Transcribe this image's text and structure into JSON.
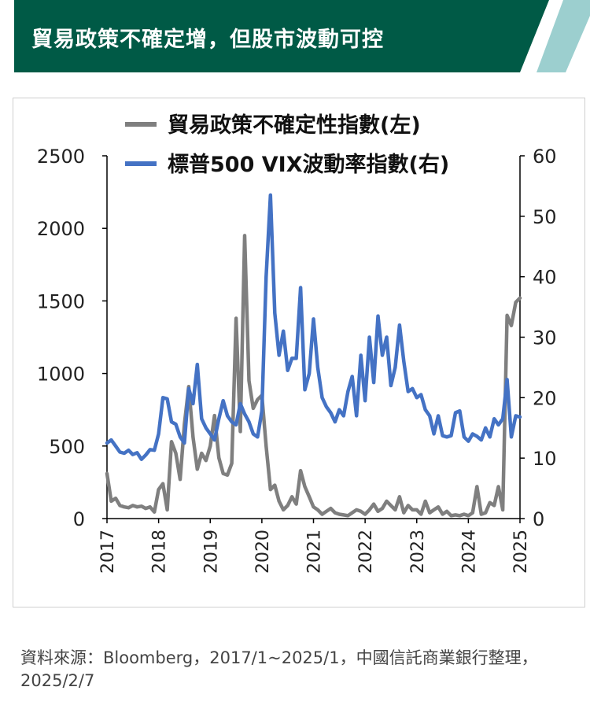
{
  "header": {
    "title": "貿易政策不確定增，但股市波動可控",
    "bg_color": "#005a46",
    "accent_color": "#9ccfcf"
  },
  "chart_data": {
    "type": "line",
    "title": "",
    "x_axis": {
      "label": "",
      "range": [
        2017,
        2025
      ],
      "ticks": [
        "2017",
        "2018",
        "2019",
        "2020",
        "2021",
        "2022",
        "2023",
        "2024",
        "2025"
      ]
    },
    "y_axis_left": {
      "label": "",
      "range": [
        0,
        2500
      ],
      "ticks": [
        "0",
        "500",
        "1000",
        "1500",
        "2000",
        "2500"
      ]
    },
    "y_axis_right": {
      "label": "",
      "range": [
        0,
        60
      ],
      "ticks": [
        "0",
        "10",
        "20",
        "30",
        "40",
        "50",
        "60"
      ]
    },
    "grid": false,
    "legend_position": "top-center",
    "series": [
      {
        "name": "貿易政策不確定性指數(左)",
        "axis": "left",
        "color": "#7f7f7f",
        "x": [
          2017.0,
          2017.083,
          2017.167,
          2017.25,
          2017.333,
          2017.417,
          2017.5,
          2017.583,
          2017.667,
          2017.75,
          2017.833,
          2017.917,
          2018.0,
          2018.083,
          2018.167,
          2018.25,
          2018.333,
          2018.417,
          2018.5,
          2018.583,
          2018.667,
          2018.75,
          2018.833,
          2018.917,
          2019.0,
          2019.083,
          2019.167,
          2019.25,
          2019.333,
          2019.417,
          2019.5,
          2019.583,
          2019.667,
          2019.75,
          2019.833,
          2019.917,
          2020.0,
          2020.083,
          2020.167,
          2020.25,
          2020.333,
          2020.417,
          2020.5,
          2020.583,
          2020.667,
          2020.75,
          2020.833,
          2020.917,
          2021.0,
          2021.083,
          2021.167,
          2021.25,
          2021.333,
          2021.417,
          2021.5,
          2021.583,
          2021.667,
          2021.75,
          2021.833,
          2021.917,
          2022.0,
          2022.083,
          2022.167,
          2022.25,
          2022.333,
          2022.417,
          2022.5,
          2022.583,
          2022.667,
          2022.75,
          2022.833,
          2022.917,
          2023.0,
          2023.083,
          2023.167,
          2023.25,
          2023.333,
          2023.417,
          2023.5,
          2023.583,
          2023.667,
          2023.75,
          2023.833,
          2023.917,
          2024.0,
          2024.083,
          2024.167,
          2024.25,
          2024.333,
          2024.417,
          2024.5,
          2024.583,
          2024.667,
          2024.75,
          2024.833,
          2024.917,
          2025.0
        ],
        "y": [
          310,
          120,
          140,
          90,
          80,
          75,
          90,
          80,
          85,
          70,
          80,
          45,
          200,
          240,
          60,
          530,
          450,
          270,
          650,
          910,
          560,
          340,
          450,
          400,
          500,
          710,
          420,
          310,
          300,
          380,
          1380,
          600,
          1950,
          950,
          760,
          820,
          850,
          500,
          200,
          230,
          120,
          60,
          90,
          150,
          100,
          330,
          220,
          150,
          80,
          60,
          30,
          50,
          70,
          40,
          30,
          25,
          20,
          40,
          60,
          50,
          30,
          60,
          100,
          50,
          70,
          120,
          90,
          60,
          150,
          40,
          90,
          60,
          60,
          30,
          120,
          40,
          60,
          80,
          30,
          50,
          20,
          25,
          20,
          30,
          20,
          40,
          220,
          30,
          40,
          110,
          90,
          220,
          60,
          1400,
          1330,
          1490,
          1520
        ]
      },
      {
        "name": "標普500 VIX波動率指數(右)",
        "axis": "right",
        "color": "#4472c4",
        "x": [
          2017.0,
          2017.083,
          2017.167,
          2017.25,
          2017.333,
          2017.417,
          2017.5,
          2017.583,
          2017.667,
          2017.75,
          2017.833,
          2017.917,
          2018.0,
          2018.083,
          2018.167,
          2018.25,
          2018.333,
          2018.417,
          2018.5,
          2018.583,
          2018.667,
          2018.75,
          2018.833,
          2018.917,
          2019.0,
          2019.083,
          2019.167,
          2019.25,
          2019.333,
          2019.417,
          2019.5,
          2019.583,
          2019.667,
          2019.75,
          2019.833,
          2019.917,
          2020.0,
          2020.083,
          2020.167,
          2020.25,
          2020.333,
          2020.417,
          2020.5,
          2020.583,
          2020.667,
          2020.75,
          2020.833,
          2020.917,
          2021.0,
          2021.083,
          2021.167,
          2021.25,
          2021.333,
          2021.417,
          2021.5,
          2021.583,
          2021.667,
          2021.75,
          2021.833,
          2021.917,
          2022.0,
          2022.083,
          2022.167,
          2022.25,
          2022.333,
          2022.417,
          2022.5,
          2022.583,
          2022.667,
          2022.75,
          2022.833,
          2022.917,
          2023.0,
          2023.083,
          2023.167,
          2023.25,
          2023.333,
          2023.417,
          2023.5,
          2023.583,
          2023.667,
          2023.75,
          2023.833,
          2023.917,
          2024.0,
          2024.083,
          2024.167,
          2024.25,
          2024.333,
          2024.417,
          2024.5,
          2024.583,
          2024.667,
          2024.75,
          2024.833,
          2024.917,
          2025.0
        ],
        "y": [
          12.5,
          13,
          12,
          11,
          10.8,
          11.3,
          10.6,
          10.9,
          9.8,
          10.5,
          11.4,
          11.3,
          14,
          20,
          19.8,
          16,
          15.6,
          13.5,
          12.5,
          21.5,
          19,
          25.5,
          16.5,
          15,
          14,
          13,
          16.5,
          19.5,
          17,
          16,
          15.5,
          19,
          17.3,
          16,
          14,
          13.5,
          17.8,
          40,
          53.5,
          34,
          27,
          31,
          24.5,
          26.5,
          26.5,
          38.2,
          21.3,
          24,
          33,
          25,
          20,
          18.5,
          17.5,
          16,
          18,
          17,
          21,
          23.5,
          17,
          27,
          19.5,
          30,
          22.5,
          33.5,
          27,
          30,
          22,
          25,
          32,
          26,
          21,
          21.5,
          20,
          20.5,
          18,
          17,
          14,
          17,
          13.7,
          13.5,
          13.7,
          17.5,
          17.8,
          13.5,
          12.8,
          14,
          13.6,
          13,
          15,
          13.5,
          16.5,
          15.5,
          16.5,
          23,
          13.5,
          17,
          16.8
        ]
      }
    ]
  },
  "source": {
    "text": "資料來源：Bloomberg，2017/1~2025/1，中國信託商業銀行整理，2025/2/7"
  }
}
